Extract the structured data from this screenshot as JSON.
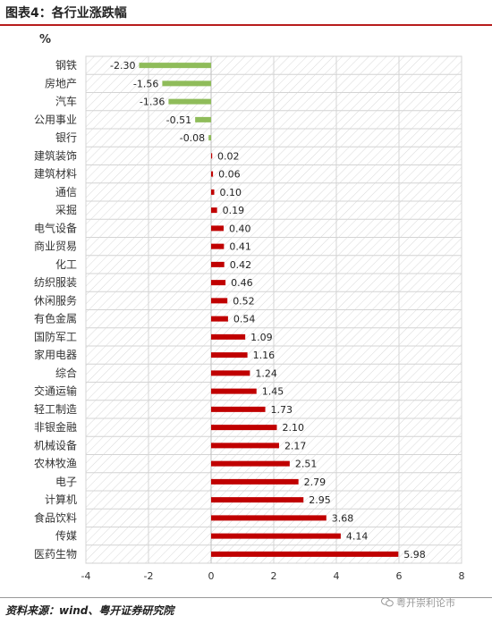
{
  "figure_title": "图表4：各行业涨跌幅",
  "unit_label": "%",
  "source_text": "资料来源：wind、粤开证券研究院",
  "watermark_text": "粤开崇利论市",
  "colors": {
    "positive": "#c00000",
    "negative": "#8fbc5a",
    "title_rule": "#b71c1c",
    "hatch": "#d9d9d9"
  },
  "chart_data": {
    "type": "bar",
    "orientation": "horizontal",
    "title": "",
    "xlabel": "",
    "ylabel": "",
    "xlim": [
      -4,
      8
    ],
    "xticks": [
      -4,
      -2,
      0,
      2,
      4,
      6,
      8
    ],
    "grid": true,
    "categories": [
      "钢铁",
      "房地产",
      "汽车",
      "公用事业",
      "银行",
      "建筑装饰",
      "建筑材料",
      "通信",
      "采掘",
      "电气设备",
      "商业贸易",
      "化工",
      "纺织服装",
      "休闲服务",
      "有色金属",
      "国防军工",
      "家用电器",
      "综合",
      "交通运输",
      "轻工制造",
      "非银金融",
      "机械设备",
      "农林牧渔",
      "电子",
      "计算机",
      "食品饮料",
      "传媒",
      "医药生物"
    ],
    "values": [
      -2.3,
      -1.56,
      -1.36,
      -0.51,
      -0.08,
      0.02,
      0.06,
      0.1,
      0.19,
      0.4,
      0.41,
      0.42,
      0.46,
      0.52,
      0.54,
      1.09,
      1.16,
      1.24,
      1.45,
      1.73,
      2.1,
      2.17,
      2.51,
      2.79,
      2.95,
      3.68,
      4.14,
      5.98
    ],
    "value_labels": [
      "-2.30",
      "-1.56",
      "-1.36",
      "-0.51",
      "-0.08",
      "0.02",
      "0.06",
      "0.10",
      "0.19",
      "0.40",
      "0.41",
      "0.42",
      "0.46",
      "0.52",
      "0.54",
      "1.09",
      "1.16",
      "1.24",
      "1.45",
      "1.73",
      "2.10",
      "2.17",
      "2.51",
      "2.79",
      "2.95",
      "3.68",
      "4.14",
      "5.98"
    ]
  }
}
